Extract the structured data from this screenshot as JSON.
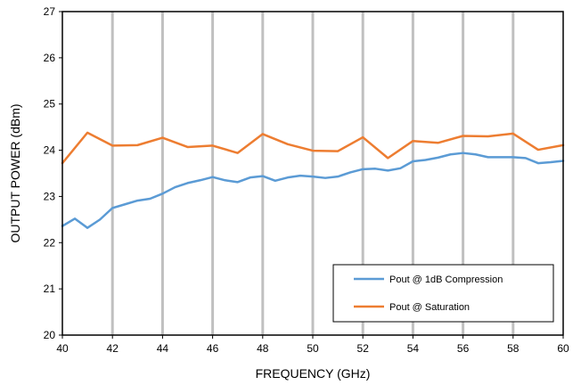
{
  "chart_data": {
    "type": "line",
    "title": "",
    "xlabel": "FREQUENCY (GHz)",
    "ylabel": "OUTPUT POWER (dBm)",
    "xlim": [
      40,
      60
    ],
    "ylim": [
      20,
      27
    ],
    "x_ticks": [
      40,
      42,
      44,
      46,
      48,
      50,
      52,
      54,
      56,
      58,
      60
    ],
    "y_ticks": [
      20,
      21,
      22,
      23,
      24,
      25,
      26,
      27
    ],
    "grid": "vertical",
    "legend_position": "bottom-right",
    "series": [
      {
        "name": "Pout @ 1dB Compression",
        "color": "#5b9bd5",
        "x": [
          40,
          40.5,
          41,
          41.5,
          42,
          42.5,
          43,
          43.5,
          44,
          44.5,
          45,
          45.5,
          46,
          46.5,
          47,
          47.5,
          48,
          48.5,
          49,
          49.5,
          50,
          50.5,
          51,
          51.5,
          52,
          52.5,
          53,
          53.5,
          54,
          54.5,
          55,
          55.5,
          56,
          56.5,
          57,
          57.5,
          58,
          58.5,
          59,
          59.5,
          60
        ],
        "y": [
          22.36,
          22.52,
          22.32,
          22.5,
          22.75,
          22.83,
          22.91,
          22.95,
          23.06,
          23.2,
          23.29,
          23.35,
          23.42,
          23.35,
          23.31,
          23.41,
          23.44,
          23.34,
          23.41,
          23.45,
          23.43,
          23.4,
          23.43,
          23.52,
          23.59,
          23.6,
          23.56,
          23.61,
          23.76,
          23.79,
          23.84,
          23.91,
          23.94,
          23.91,
          23.85,
          23.85,
          23.85,
          23.83,
          23.72,
          23.74,
          23.77
        ]
      },
      {
        "name": "Pout @ Saturation",
        "color": "#ed7d31",
        "x": [
          40,
          41,
          42,
          43,
          44,
          45,
          46,
          47,
          48,
          49,
          50,
          51,
          52,
          53,
          54,
          55,
          56,
          57,
          58,
          59,
          60
        ],
        "y": [
          23.72,
          24.38,
          24.1,
          24.11,
          24.27,
          24.07,
          24.1,
          23.94,
          24.35,
          24.13,
          23.99,
          23.98,
          24.28,
          23.83,
          24.2,
          24.16,
          24.31,
          24.3,
          24.36,
          24.01,
          24.11
        ]
      }
    ]
  }
}
